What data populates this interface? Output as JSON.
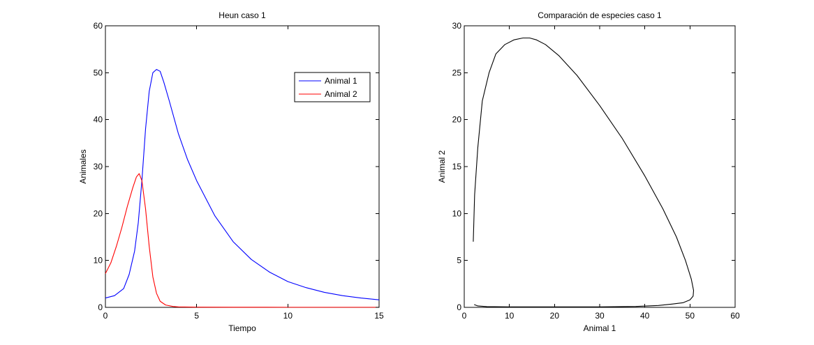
{
  "chart_data": [
    {
      "type": "line",
      "title": "Heun caso 1",
      "xlabel": "Tiempo",
      "ylabel": "Animales",
      "xlim": [
        0,
        15
      ],
      "ylim": [
        0,
        60
      ],
      "xticks": [
        0,
        5,
        10,
        15
      ],
      "yticks": [
        0,
        10,
        20,
        30,
        40,
        50,
        60
      ],
      "xtick_labels": [
        "0",
        "5",
        "10",
        "15"
      ],
      "ytick_labels": [
        "0",
        "10",
        "20",
        "30",
        "40",
        "50",
        "60"
      ],
      "grid": false,
      "legend": {
        "placement": "top-right",
        "entries": [
          "Animal 1",
          "Animal 2"
        ]
      },
      "series": [
        {
          "name": "Animal 1",
          "color": "#0000ff",
          "x": [
            0,
            0.5,
            1.0,
            1.3,
            1.6,
            1.8,
            2.0,
            2.2,
            2.4,
            2.6,
            2.8,
            3.0,
            3.2,
            3.5,
            4.0,
            4.5,
            5.0,
            6.0,
            7.0,
            8.0,
            9.0,
            10.0,
            11.0,
            12.0,
            13.0,
            14.0,
            15.0
          ],
          "y": [
            2.0,
            2.5,
            4.0,
            7.0,
            12.0,
            18.0,
            27.0,
            38.0,
            46.0,
            50.0,
            50.7,
            50.3,
            48.0,
            44.0,
            37.0,
            31.5,
            27.0,
            19.5,
            14.0,
            10.2,
            7.5,
            5.5,
            4.2,
            3.2,
            2.5,
            2.0,
            1.6
          ]
        },
        {
          "name": "Animal 2",
          "color": "#ff0000",
          "x": [
            0,
            0.3,
            0.6,
            0.9,
            1.2,
            1.5,
            1.7,
            1.85,
            2.0,
            2.2,
            2.4,
            2.6,
            2.8,
            3.0,
            3.3,
            3.7,
            4.0,
            5.0,
            7.0,
            10.0,
            15.0
          ],
          "y": [
            7.2,
            9.5,
            13.0,
            17.0,
            21.5,
            25.5,
            27.8,
            28.5,
            27.0,
            21.0,
            13.0,
            6.5,
            3.0,
            1.3,
            0.5,
            0.2,
            0.1,
            0.05,
            0.03,
            0.02,
            0.02
          ]
        }
      ]
    },
    {
      "type": "line",
      "title": "Comparación de especies caso 1",
      "xlabel": "Animal 1",
      "ylabel": "Animal 2",
      "xlim": [
        0,
        60
      ],
      "ylim": [
        0,
        30
      ],
      "xticks": [
        0,
        10,
        20,
        30,
        40,
        50,
        60
      ],
      "yticks": [
        0,
        5,
        10,
        15,
        20,
        25,
        30
      ],
      "xtick_labels": [
        "0",
        "10",
        "20",
        "30",
        "40",
        "50",
        "60"
      ],
      "ytick_labels": [
        "0",
        "5",
        "10",
        "15",
        "20",
        "25",
        "30"
      ],
      "grid": false,
      "series": [
        {
          "color": "#000000",
          "x": [
            2.0,
            2.3,
            3.0,
            4.0,
            5.5,
            7.0,
            9.0,
            11.0,
            13.0,
            14.5,
            16.0,
            18.0,
            21.0,
            25.0,
            30.0,
            35.0,
            40.0,
            44.0,
            47.0,
            49.0,
            50.3,
            50.8,
            50.7,
            50.0,
            48.5,
            46.0,
            43.0,
            38.0,
            30.0,
            20.0,
            10.0,
            5.0,
            3.0,
            2.2
          ],
          "y": [
            7.0,
            12.0,
            17.0,
            22.0,
            25.0,
            27.0,
            28.0,
            28.5,
            28.7,
            28.7,
            28.5,
            28.0,
            26.8,
            24.7,
            21.5,
            18.0,
            14.0,
            10.5,
            7.5,
            5.0,
            3.0,
            1.8,
            1.2,
            0.8,
            0.5,
            0.35,
            0.2,
            0.1,
            0.05,
            0.05,
            0.05,
            0.08,
            0.15,
            0.3
          ]
        }
      ]
    }
  ]
}
